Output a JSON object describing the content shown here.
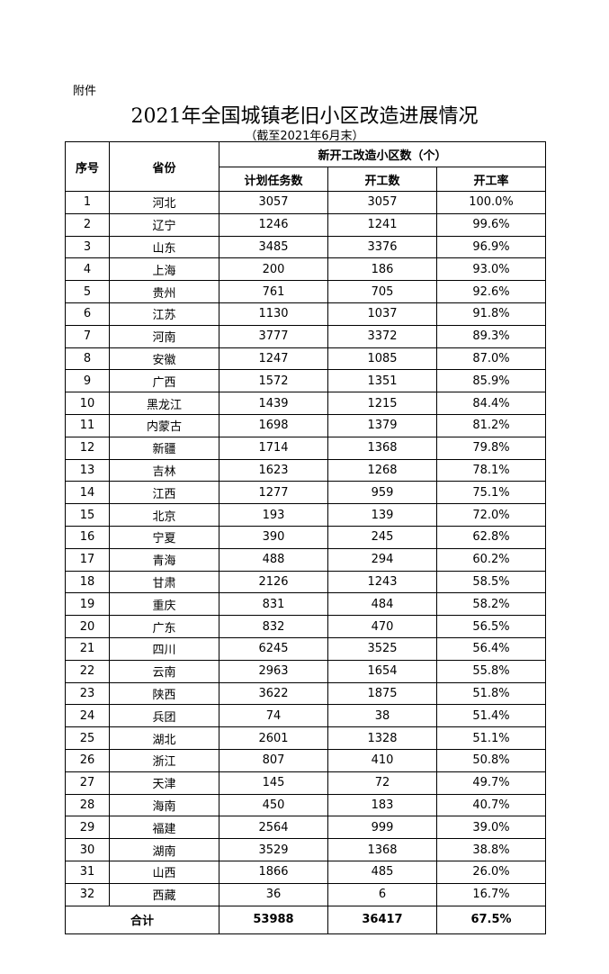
{
  "attachment_label": "附件",
  "title": "2021年全国城镇老旧小区改造进展情况",
  "subtitle": "（截至2021年6月末）",
  "table": {
    "headers": {
      "index": "序号",
      "province": "省份",
      "group": "新开工改造小区数（个）",
      "planned": "计划任务数",
      "started": "开工数",
      "rate": "开工率"
    },
    "rows": [
      [
        "1",
        "河北",
        "3057",
        "3057",
        "100.0%"
      ],
      [
        "2",
        "辽宁",
        "1246",
        "1241",
        "99.6%"
      ],
      [
        "3",
        "山东",
        "3485",
        "3376",
        "96.9%"
      ],
      [
        "4",
        "上海",
        "200",
        "186",
        "93.0%"
      ],
      [
        "5",
        "贵州",
        "761",
        "705",
        "92.6%"
      ],
      [
        "6",
        "江苏",
        "1130",
        "1037",
        "91.8%"
      ],
      [
        "7",
        "河南",
        "3777",
        "3372",
        "89.3%"
      ],
      [
        "8",
        "安徽",
        "1247",
        "1085",
        "87.0%"
      ],
      [
        "9",
        "广西",
        "1572",
        "1351",
        "85.9%"
      ],
      [
        "10",
        "黑龙江",
        "1439",
        "1215",
        "84.4%"
      ],
      [
        "11",
        "内蒙古",
        "1698",
        "1379",
        "81.2%"
      ],
      [
        "12",
        "新疆",
        "1714",
        "1368",
        "79.8%"
      ],
      [
        "13",
        "吉林",
        "1623",
        "1268",
        "78.1%"
      ],
      [
        "14",
        "江西",
        "1277",
        "959",
        "75.1%"
      ],
      [
        "15",
        "北京",
        "193",
        "139",
        "72.0%"
      ],
      [
        "16",
        "宁夏",
        "390",
        "245",
        "62.8%"
      ],
      [
        "17",
        "青海",
        "488",
        "294",
        "60.2%"
      ],
      [
        "18",
        "甘肃",
        "2126",
        "1243",
        "58.5%"
      ],
      [
        "19",
        "重庆",
        "831",
        "484",
        "58.2%"
      ],
      [
        "20",
        "广东",
        "832",
        "470",
        "56.5%"
      ],
      [
        "21",
        "四川",
        "6245",
        "3525",
        "56.4%"
      ],
      [
        "22",
        "云南",
        "2963",
        "1654",
        "55.8%"
      ],
      [
        "23",
        "陕西",
        "3622",
        "1875",
        "51.8%"
      ],
      [
        "24",
        "兵团",
        "74",
        "38",
        "51.4%"
      ],
      [
        "25",
        "湖北",
        "2601",
        "1328",
        "51.1%"
      ],
      [
        "26",
        "浙江",
        "807",
        "410",
        "50.8%"
      ],
      [
        "27",
        "天津",
        "145",
        "72",
        "49.7%"
      ],
      [
        "28",
        "海南",
        "450",
        "183",
        "40.7%"
      ],
      [
        "29",
        "福建",
        "2564",
        "999",
        "39.0%"
      ],
      [
        "30",
        "湖南",
        "3529",
        "1368",
        "38.8%"
      ],
      [
        "31",
        "山西",
        "1866",
        "485",
        "26.0%"
      ],
      [
        "32",
        "西藏",
        "36",
        "6",
        "16.7%"
      ]
    ],
    "total": {
      "label": "合计",
      "planned": "53988",
      "started": "36417",
      "rate": "67.5%"
    }
  }
}
